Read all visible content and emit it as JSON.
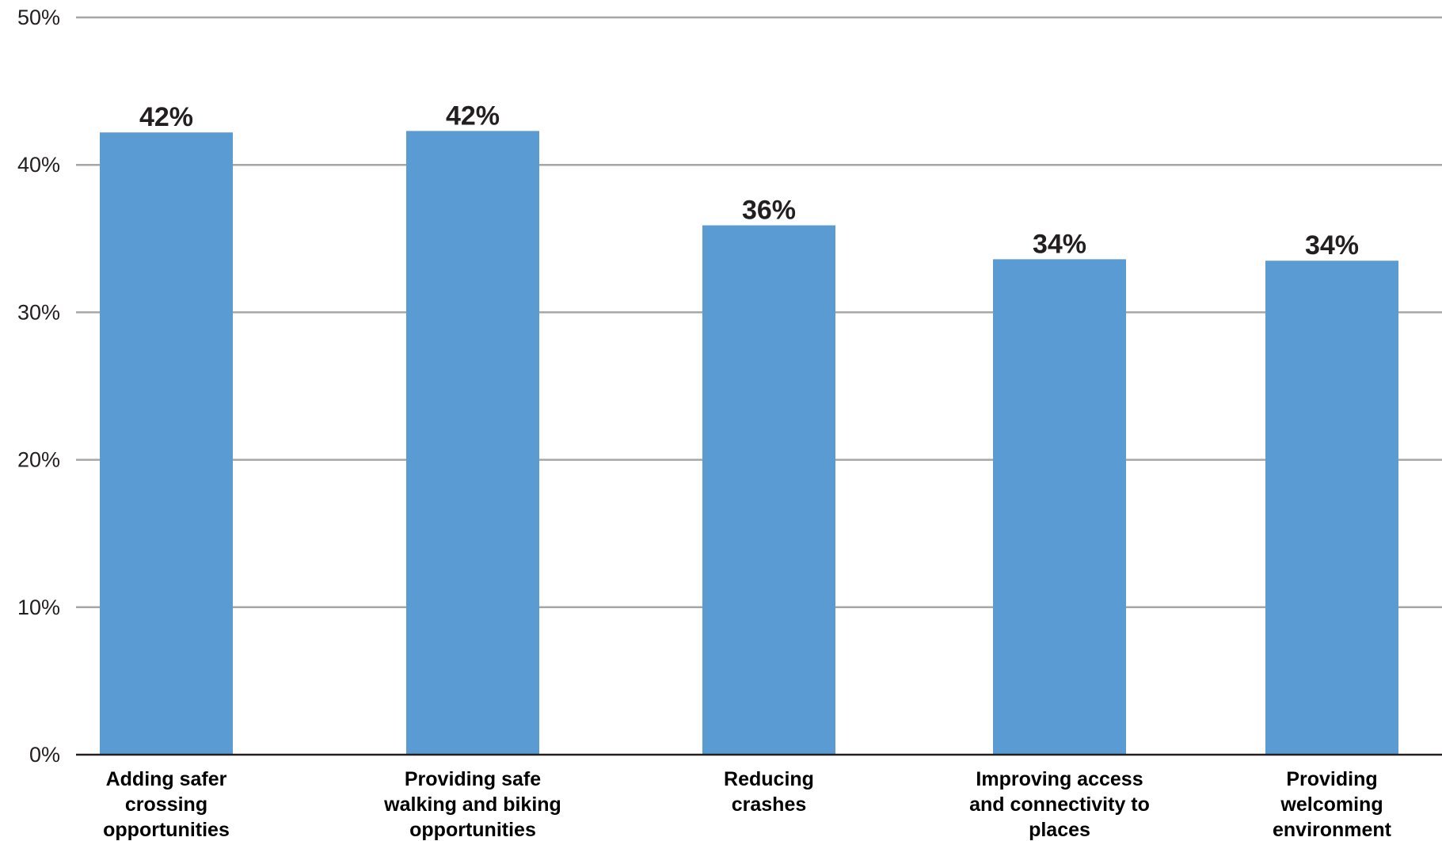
{
  "chart_data": {
    "type": "bar",
    "title": "",
    "xlabel": "",
    "ylabel": "",
    "ylim": [
      0,
      50
    ],
    "yticks": [
      0,
      10,
      20,
      30,
      40,
      50
    ],
    "ytick_labels": [
      "0%",
      "10%",
      "20%",
      "30%",
      "40%",
      "50%"
    ],
    "grid": true,
    "categories": [
      [
        "Adding safer",
        "crossing",
        "opportunities"
      ],
      [
        "Providing safe",
        "walking and biking",
        "opportunities"
      ],
      [
        "Reducing",
        "crashes"
      ],
      [
        "Improving access",
        "and connectivity to",
        "places"
      ],
      [
        "Providing",
        "welcoming",
        "environment"
      ]
    ],
    "values": [
      42.2,
      42.3,
      35.9,
      33.6,
      33.5
    ],
    "data_labels": [
      "42%",
      "42%",
      "36%",
      "34%",
      "34%"
    ],
    "bar_color": "#5b9bd3",
    "grid_color": "#a6a6a6"
  }
}
